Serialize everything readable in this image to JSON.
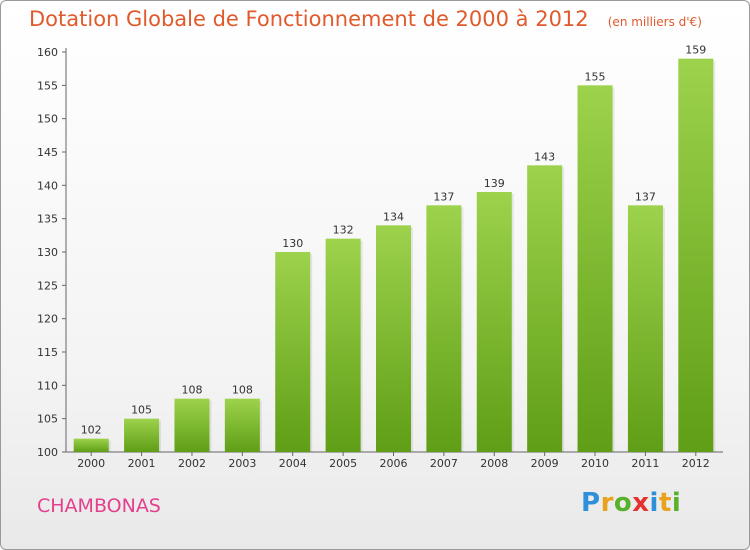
{
  "chart_data": {
    "type": "bar",
    "title": "Dotation Globale de Fonctionnement de 2000 à 2012",
    "subtitle": "(en milliers d'€)",
    "categories": [
      "2000",
      "2001",
      "2002",
      "2003",
      "2004",
      "2005",
      "2006",
      "2007",
      "2008",
      "2009",
      "2010",
      "2011",
      "2012"
    ],
    "values": [
      102,
      105,
      108,
      108,
      130,
      132,
      134,
      137,
      139,
      143,
      155,
      137,
      159
    ],
    "ylim": [
      100,
      160
    ],
    "yticks": [
      100,
      105,
      110,
      115,
      120,
      125,
      130,
      135,
      140,
      145,
      150,
      155,
      160
    ],
    "grid": false,
    "bar_color": "#7cbd2e"
  },
  "footer": {
    "commune": "CHAMBONAS",
    "logo_letters": [
      "P",
      "r",
      "o",
      "x",
      "i",
      "t",
      "i"
    ],
    "logo_colors": [
      "#2f8fd8",
      "#e8a21c",
      "#58b12b",
      "#e4322e",
      "#2f8fd8",
      "#e8a21c",
      "#58b12b"
    ]
  }
}
